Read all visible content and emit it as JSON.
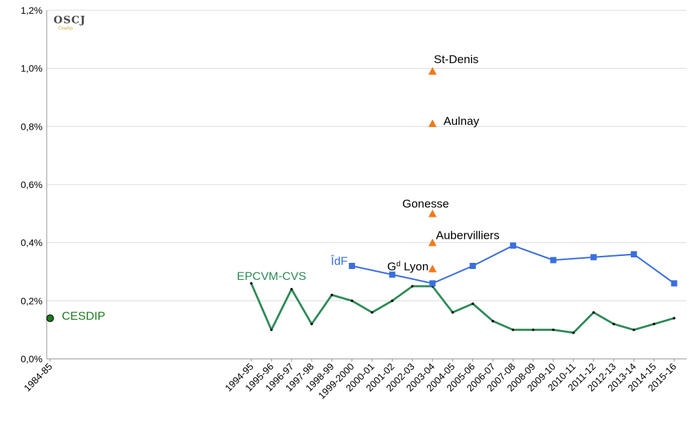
{
  "logo": {
    "text": "OSCJ",
    "sub": "Cesdip"
  },
  "chart_data": {
    "type": "line",
    "y_axis": {
      "min": 0,
      "max": 1.2,
      "step": 0.2,
      "format": "percent-comma",
      "grid": true
    },
    "categories": [
      "1984-85",
      "1994-95",
      "1995-96",
      "1996-97",
      "1997-98",
      "1998-99",
      "1999-2000",
      "2000-01",
      "2001-02",
      "2002-03",
      "2003-04",
      "2004-05",
      "2005-06",
      "2006-07",
      "2007-08",
      "2008-09",
      "2009-10",
      "2010-11",
      "2011-12",
      "2012-13",
      "2013-14",
      "2014-15",
      "2015-16"
    ],
    "series": [
      {
        "name": "CESDIP",
        "color": "#1e7a1e",
        "marker": "circle",
        "line": false,
        "points": [
          {
            "x": "1984-85",
            "y": 0.14
          }
        ]
      },
      {
        "name": "EPCVM-CVS",
        "color": "#2e8b57",
        "marker": "dot",
        "line": true,
        "points": [
          {
            "x": "1994-95",
            "y": 0.26
          },
          {
            "x": "1995-96",
            "y": 0.1
          },
          {
            "x": "1996-97",
            "y": 0.24
          },
          {
            "x": "1997-98",
            "y": 0.12
          },
          {
            "x": "1998-99",
            "y": 0.22
          },
          {
            "x": "1999-2000",
            "y": 0.2
          },
          {
            "x": "2000-01",
            "y": 0.16
          },
          {
            "x": "2001-02",
            "y": 0.2
          },
          {
            "x": "2002-03",
            "y": 0.25
          },
          {
            "x": "2003-04",
            "y": 0.25
          },
          {
            "x": "2004-05",
            "y": 0.16
          },
          {
            "x": "2005-06",
            "y": 0.19
          },
          {
            "x": "2006-07",
            "y": 0.13
          },
          {
            "x": "2007-08",
            "y": 0.1
          },
          {
            "x": "2008-09",
            "y": 0.1
          },
          {
            "x": "2009-10",
            "y": 0.1
          },
          {
            "x": "2010-11",
            "y": 0.09
          },
          {
            "x": "2011-12",
            "y": 0.16
          },
          {
            "x": "2012-13",
            "y": 0.12
          },
          {
            "x": "2013-14",
            "y": 0.1
          },
          {
            "x": "2014-15",
            "y": 0.12
          },
          {
            "x": "2015-16",
            "y": 0.14
          }
        ]
      },
      {
        "name": "ÎdF",
        "color": "#3b6fde",
        "marker": "square",
        "line": true,
        "points": [
          {
            "x": "1999-2000",
            "y": 0.32
          },
          {
            "x": "2001-02",
            "y": 0.29
          },
          {
            "x": "2003-04",
            "y": 0.26
          },
          {
            "x": "2005-06",
            "y": 0.32
          },
          {
            "x": "2007-08",
            "y": 0.39
          },
          {
            "x": "2009-10",
            "y": 0.34
          },
          {
            "x": "2011-12",
            "y": 0.35
          },
          {
            "x": "2013-14",
            "y": 0.36
          },
          {
            "x": "2015-16",
            "y": 0.26
          }
        ]
      },
      {
        "name": "",
        "color": "#f07a1a",
        "marker": "triangle",
        "line": false,
        "points": [
          {
            "x": "2003-04",
            "y": 0.99,
            "label": "St-Denis"
          },
          {
            "x": "2003-04",
            "y": 0.81,
            "label": "Aulnay"
          },
          {
            "x": "2003-04",
            "y": 0.5,
            "label": "Gonesse"
          },
          {
            "x": "2003-04",
            "y": 0.4,
            "label": "Aubervilliers"
          },
          {
            "x": "2003-04",
            "y": 0.31,
            "label": "Gd Lyon"
          }
        ]
      }
    ],
    "annotations": [
      "St-Denis",
      "Aulnay",
      "Gonesse",
      "Aubervilliers",
      "Gd Lyon"
    ]
  }
}
